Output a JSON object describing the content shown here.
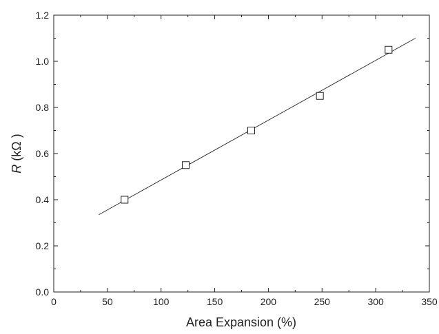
{
  "chart_data": {
    "type": "scatter",
    "title": "",
    "xlabel": "Area Expansion (%)",
    "ylabel": {
      "symbol": "R",
      "unit": " (kΩ  )"
    },
    "xlim": [
      0,
      350
    ],
    "ylim": [
      0.0,
      1.2
    ],
    "x_ticks": [
      0,
      50,
      100,
      150,
      200,
      250,
      300,
      350
    ],
    "x_tick_labels": [
      "0",
      "50",
      "100",
      "150",
      "200",
      "250",
      "300",
      "350"
    ],
    "y_ticks": [
      0.0,
      0.2,
      0.4,
      0.6,
      0.8,
      1.0,
      1.2
    ],
    "y_tick_labels": [
      "0.0",
      "0.2",
      "0.4",
      "0.6",
      "0.8",
      "1.0",
      "1.2"
    ],
    "grid": false,
    "marker": "open-square",
    "colors": {
      "axis": "#222222",
      "marker": "#222222",
      "fit_line": "#222222"
    },
    "series": [
      {
        "x": [
          66,
          123,
          184,
          248,
          312
        ],
        "y": [
          0.4,
          0.55,
          0.7,
          0.85,
          1.05
        ]
      }
    ],
    "fit_line": {
      "x": [
        42,
        337
      ],
      "y": [
        0.335,
        1.1
      ]
    }
  }
}
